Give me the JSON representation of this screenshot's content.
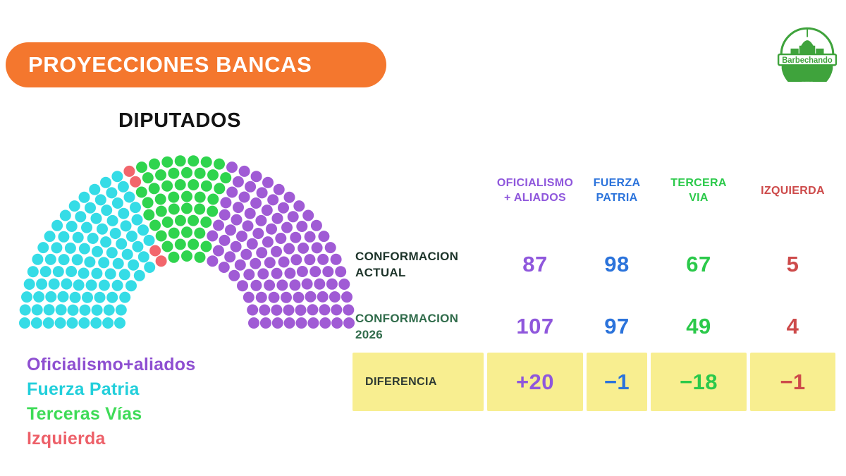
{
  "banner": {
    "title": "PROYECCIONES BANCAS",
    "color": "#F4772E"
  },
  "section_title": "DIPUTADOS",
  "logo": {
    "text": "Barbechando",
    "color": "#3FA33C"
  },
  "legend": {
    "items": [
      {
        "label": "Oficialismo+aliados",
        "color": "#8E4FD1"
      },
      {
        "label": "Fuerza Patria",
        "color": "#22CFDB"
      },
      {
        "label": "Terceras Vías",
        "color": "#3EDB57"
      },
      {
        "label": "Izquierda",
        "color": "#ED6069"
      }
    ]
  },
  "table": {
    "columns": [
      {
        "line1": "OFICIALISMO",
        "line2": "+ ALIADOS",
        "color": "#8F57DC"
      },
      {
        "line1": "FUERZA",
        "line2": "PATRIA",
        "color": "#2B73DB"
      },
      {
        "line1": "TERCERA",
        "line2": "VIA",
        "color": "#2BC94A"
      },
      {
        "line1": "IZQUIERDA",
        "line2": "",
        "color": "#CD4A4A"
      }
    ],
    "rows": [
      {
        "label_line1": "CONFORMACION",
        "label_line2": "ACTUAL",
        "label_color": "#1C3329",
        "values": [
          "87",
          "98",
          "67",
          "5"
        ]
      },
      {
        "label_line1": "CONFORMACION",
        "label_line2": "2026",
        "label_color": "#2F6B4A",
        "values": [
          "107",
          "97",
          "49",
          "4"
        ]
      },
      {
        "label_line1": "DIFERENCIA",
        "label_line2": "",
        "label_color": "#2E3A33",
        "values": [
          "+20",
          "−1",
          "−18",
          "−1"
        ],
        "highlight": "#F8EE90"
      }
    ]
  },
  "chart_data": [
    {
      "type": "pie",
      "subtype": "parliament-hemicycle",
      "title": "DIPUTADOS",
      "total_seats": 257,
      "legend_position": "bottom-left",
      "series": [
        {
          "name": "Fuerza Patria",
          "seats": 97,
          "color": "#35DCE6"
        },
        {
          "name": "Izquierda",
          "seats": 4,
          "color": "#F2666C"
        },
        {
          "name": "Terceras Vías",
          "seats": 49,
          "color": "#2FD44E"
        },
        {
          "name": "Oficialismo+aliados",
          "seats": 107,
          "color": "#A05BD5"
        }
      ]
    },
    {
      "type": "table",
      "columns": [
        "OFICIALISMO + ALIADOS",
        "FUERZA PATRIA",
        "TERCERA VIA",
        "IZQUIERDA"
      ],
      "rows": [
        {
          "label": "CONFORMACION ACTUAL",
          "values": [
            87,
            98,
            67,
            5
          ]
        },
        {
          "label": "CONFORMACION 2026",
          "values": [
            107,
            97,
            49,
            4
          ]
        },
        {
          "label": "DIFERENCIA",
          "values": [
            "+20",
            "-1",
            "-18",
            "-1"
          ]
        }
      ]
    }
  ]
}
